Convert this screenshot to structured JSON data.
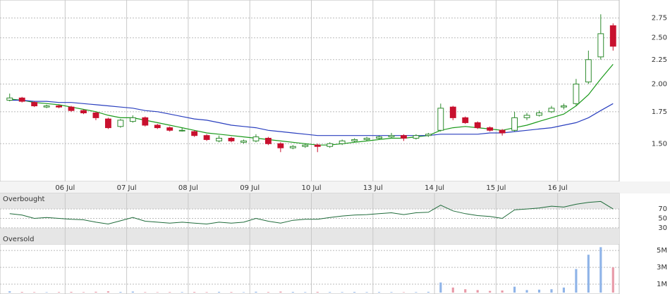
{
  "chart_data": [
    {
      "type": "candlestick",
      "categories": [
        null,
        null,
        null,
        null,
        null,
        "06 Jul",
        null,
        null,
        null,
        null,
        "07 Jul",
        null,
        null,
        null,
        null,
        "08 Jul",
        null,
        null,
        null,
        null,
        "09 Jul",
        null,
        null,
        null,
        null,
        "10 Jul",
        null,
        null,
        null,
        null,
        "13 Jul",
        null,
        null,
        null,
        null,
        "14 Jul",
        null,
        null,
        null,
        null,
        "15 Jul",
        null,
        null,
        null,
        null,
        "16 Jul",
        null,
        null,
        null,
        null
      ],
      "open": [
        1.85,
        1.87,
        1.83,
        1.79,
        1.8,
        1.79,
        1.76,
        1.74,
        1.69,
        1.63,
        1.67,
        1.7,
        1.64,
        1.62,
        1.6,
        1.59,
        1.56,
        1.52,
        1.54,
        1.51,
        1.52,
        1.54,
        1.5,
        1.47,
        1.48,
        1.49,
        1.48,
        1.5,
        1.52,
        1.53,
        1.54,
        1.55,
        1.56,
        1.54,
        1.56,
        1.6,
        1.79,
        1.7,
        1.66,
        1.62,
        1.6,
        1.6,
        1.7,
        1.72,
        1.75,
        1.79,
        1.82,
        2.02,
        2.28,
        2.65
      ],
      "high": [
        1.91,
        1.88,
        1.84,
        1.81,
        1.81,
        1.8,
        1.77,
        1.75,
        1.7,
        1.69,
        1.72,
        1.71,
        1.65,
        1.63,
        1.62,
        1.6,
        1.57,
        1.56,
        1.55,
        1.53,
        1.57,
        1.55,
        1.51,
        1.49,
        1.5,
        1.5,
        1.51,
        1.53,
        1.54,
        1.55,
        1.56,
        1.58,
        1.57,
        1.57,
        1.58,
        1.82,
        1.8,
        1.71,
        1.67,
        1.63,
        1.61,
        1.75,
        1.74,
        1.76,
        1.8,
        1.82,
        2.05,
        2.35,
        2.8,
        2.68
      ],
      "low": [
        1.84,
        1.83,
        1.79,
        1.78,
        1.78,
        1.75,
        1.73,
        1.68,
        1.61,
        1.62,
        1.66,
        1.63,
        1.61,
        1.59,
        1.59,
        1.55,
        1.52,
        1.51,
        1.51,
        1.5,
        1.51,
        1.49,
        1.44,
        1.46,
        1.47,
        1.44,
        1.47,
        1.49,
        1.51,
        1.52,
        1.53,
        1.54,
        1.52,
        1.53,
        1.55,
        1.59,
        1.68,
        1.65,
        1.61,
        1.59,
        1.56,
        1.59,
        1.68,
        1.71,
        1.74,
        1.77,
        1.8,
        2.0,
        2.25,
        2.35
      ],
      "close": [
        1.87,
        1.84,
        1.8,
        1.8,
        1.79,
        1.76,
        1.74,
        1.7,
        1.62,
        1.68,
        1.7,
        1.64,
        1.62,
        1.6,
        1.6,
        1.56,
        1.53,
        1.54,
        1.52,
        1.52,
        1.55,
        1.5,
        1.47,
        1.48,
        1.49,
        1.48,
        1.5,
        1.52,
        1.53,
        1.54,
        1.55,
        1.56,
        1.54,
        1.56,
        1.57,
        1.78,
        1.7,
        1.66,
        1.62,
        1.6,
        1.58,
        1.7,
        1.72,
        1.74,
        1.78,
        1.8,
        2.0,
        2.25,
        2.55,
        2.4
      ],
      "up_color": "#2e8b2e",
      "down_color": "#c8102e",
      "series": [
        {
          "color": "#1a9a1a",
          "values": [
            1.86,
            1.85,
            1.83,
            1.82,
            1.81,
            1.79,
            1.77,
            1.75,
            1.72,
            1.7,
            1.7,
            1.68,
            1.66,
            1.64,
            1.62,
            1.6,
            1.58,
            1.57,
            1.56,
            1.55,
            1.54,
            1.53,
            1.52,
            1.51,
            1.5,
            1.49,
            1.49,
            1.5,
            1.51,
            1.52,
            1.53,
            1.54,
            1.54,
            1.55,
            1.56,
            1.6,
            1.62,
            1.63,
            1.62,
            1.61,
            1.6,
            1.62,
            1.64,
            1.67,
            1.7,
            1.73,
            1.8,
            1.9,
            2.05,
            2.2
          ]
        },
        {
          "color": "#2a3fbf",
          "values": [
            1.85,
            1.85,
            1.84,
            1.84,
            1.83,
            1.83,
            1.82,
            1.81,
            1.8,
            1.79,
            1.78,
            1.76,
            1.75,
            1.73,
            1.71,
            1.69,
            1.68,
            1.66,
            1.64,
            1.63,
            1.62,
            1.6,
            1.59,
            1.58,
            1.57,
            1.56,
            1.56,
            1.56,
            1.56,
            1.56,
            1.56,
            1.56,
            1.56,
            1.56,
            1.56,
            1.57,
            1.57,
            1.57,
            1.57,
            1.58,
            1.58,
            1.59,
            1.6,
            1.61,
            1.62,
            1.64,
            1.66,
            1.7,
            1.76,
            1.82
          ]
        }
      ],
      "log_scale": true,
      "ylim": [
        1.25,
        3.0
      ],
      "yticks": [
        {
          "value": 1.5,
          "label": "1.50"
        },
        {
          "value": 1.75,
          "label": "1.75"
        },
        {
          "value": 2,
          "label": "2.00"
        },
        {
          "value": 2.25,
          "label": "2.25"
        },
        {
          "value": 2.5,
          "label": "2.50"
        },
        {
          "value": 2.75,
          "label": "2.75"
        }
      ],
      "grid": true
    },
    {
      "type": "line",
      "color": "#1f6b3a",
      "values": [
        60,
        57,
        50,
        52,
        50,
        48,
        47,
        42,
        38,
        45,
        52,
        44,
        42,
        40,
        42,
        40,
        38,
        42,
        40,
        42,
        50,
        44,
        40,
        46,
        48,
        48,
        52,
        55,
        57,
        58,
        60,
        62,
        58,
        62,
        63,
        78,
        66,
        60,
        56,
        54,
        50,
        68,
        70,
        72,
        76,
        74,
        80,
        84,
        86,
        70
      ],
      "ylim": [
        0,
        100
      ],
      "yticks": [
        30,
        50,
        70
      ],
      "upper_label": "Overbought",
      "lower_label": "Oversold"
    },
    {
      "type": "bar",
      "up_color": "#8fb4e8",
      "down_color": "#e89aa8",
      "values": [
        150000,
        80000,
        60000,
        50000,
        70000,
        90000,
        60000,
        100000,
        150000,
        80000,
        120000,
        60000,
        50000,
        70000,
        60000,
        80000,
        60000,
        90000,
        70000,
        50000,
        100000,
        70000,
        120000,
        80000,
        60000,
        90000,
        70000,
        60000,
        80000,
        60000,
        70000,
        60000,
        50000,
        60000,
        90000,
        1200000,
        600000,
        400000,
        300000,
        200000,
        250000,
        700000,
        300000,
        350000,
        400000,
        600000,
        2800000,
        4500000,
        5400000,
        3000000
      ],
      "ylim": [
        0,
        5600000
      ],
      "yticks": [
        {
          "value": 1000000,
          "label": "1M"
        },
        {
          "value": 3000000,
          "label": "3M"
        },
        {
          "value": 5000000,
          "label": "5M"
        }
      ]
    }
  ]
}
